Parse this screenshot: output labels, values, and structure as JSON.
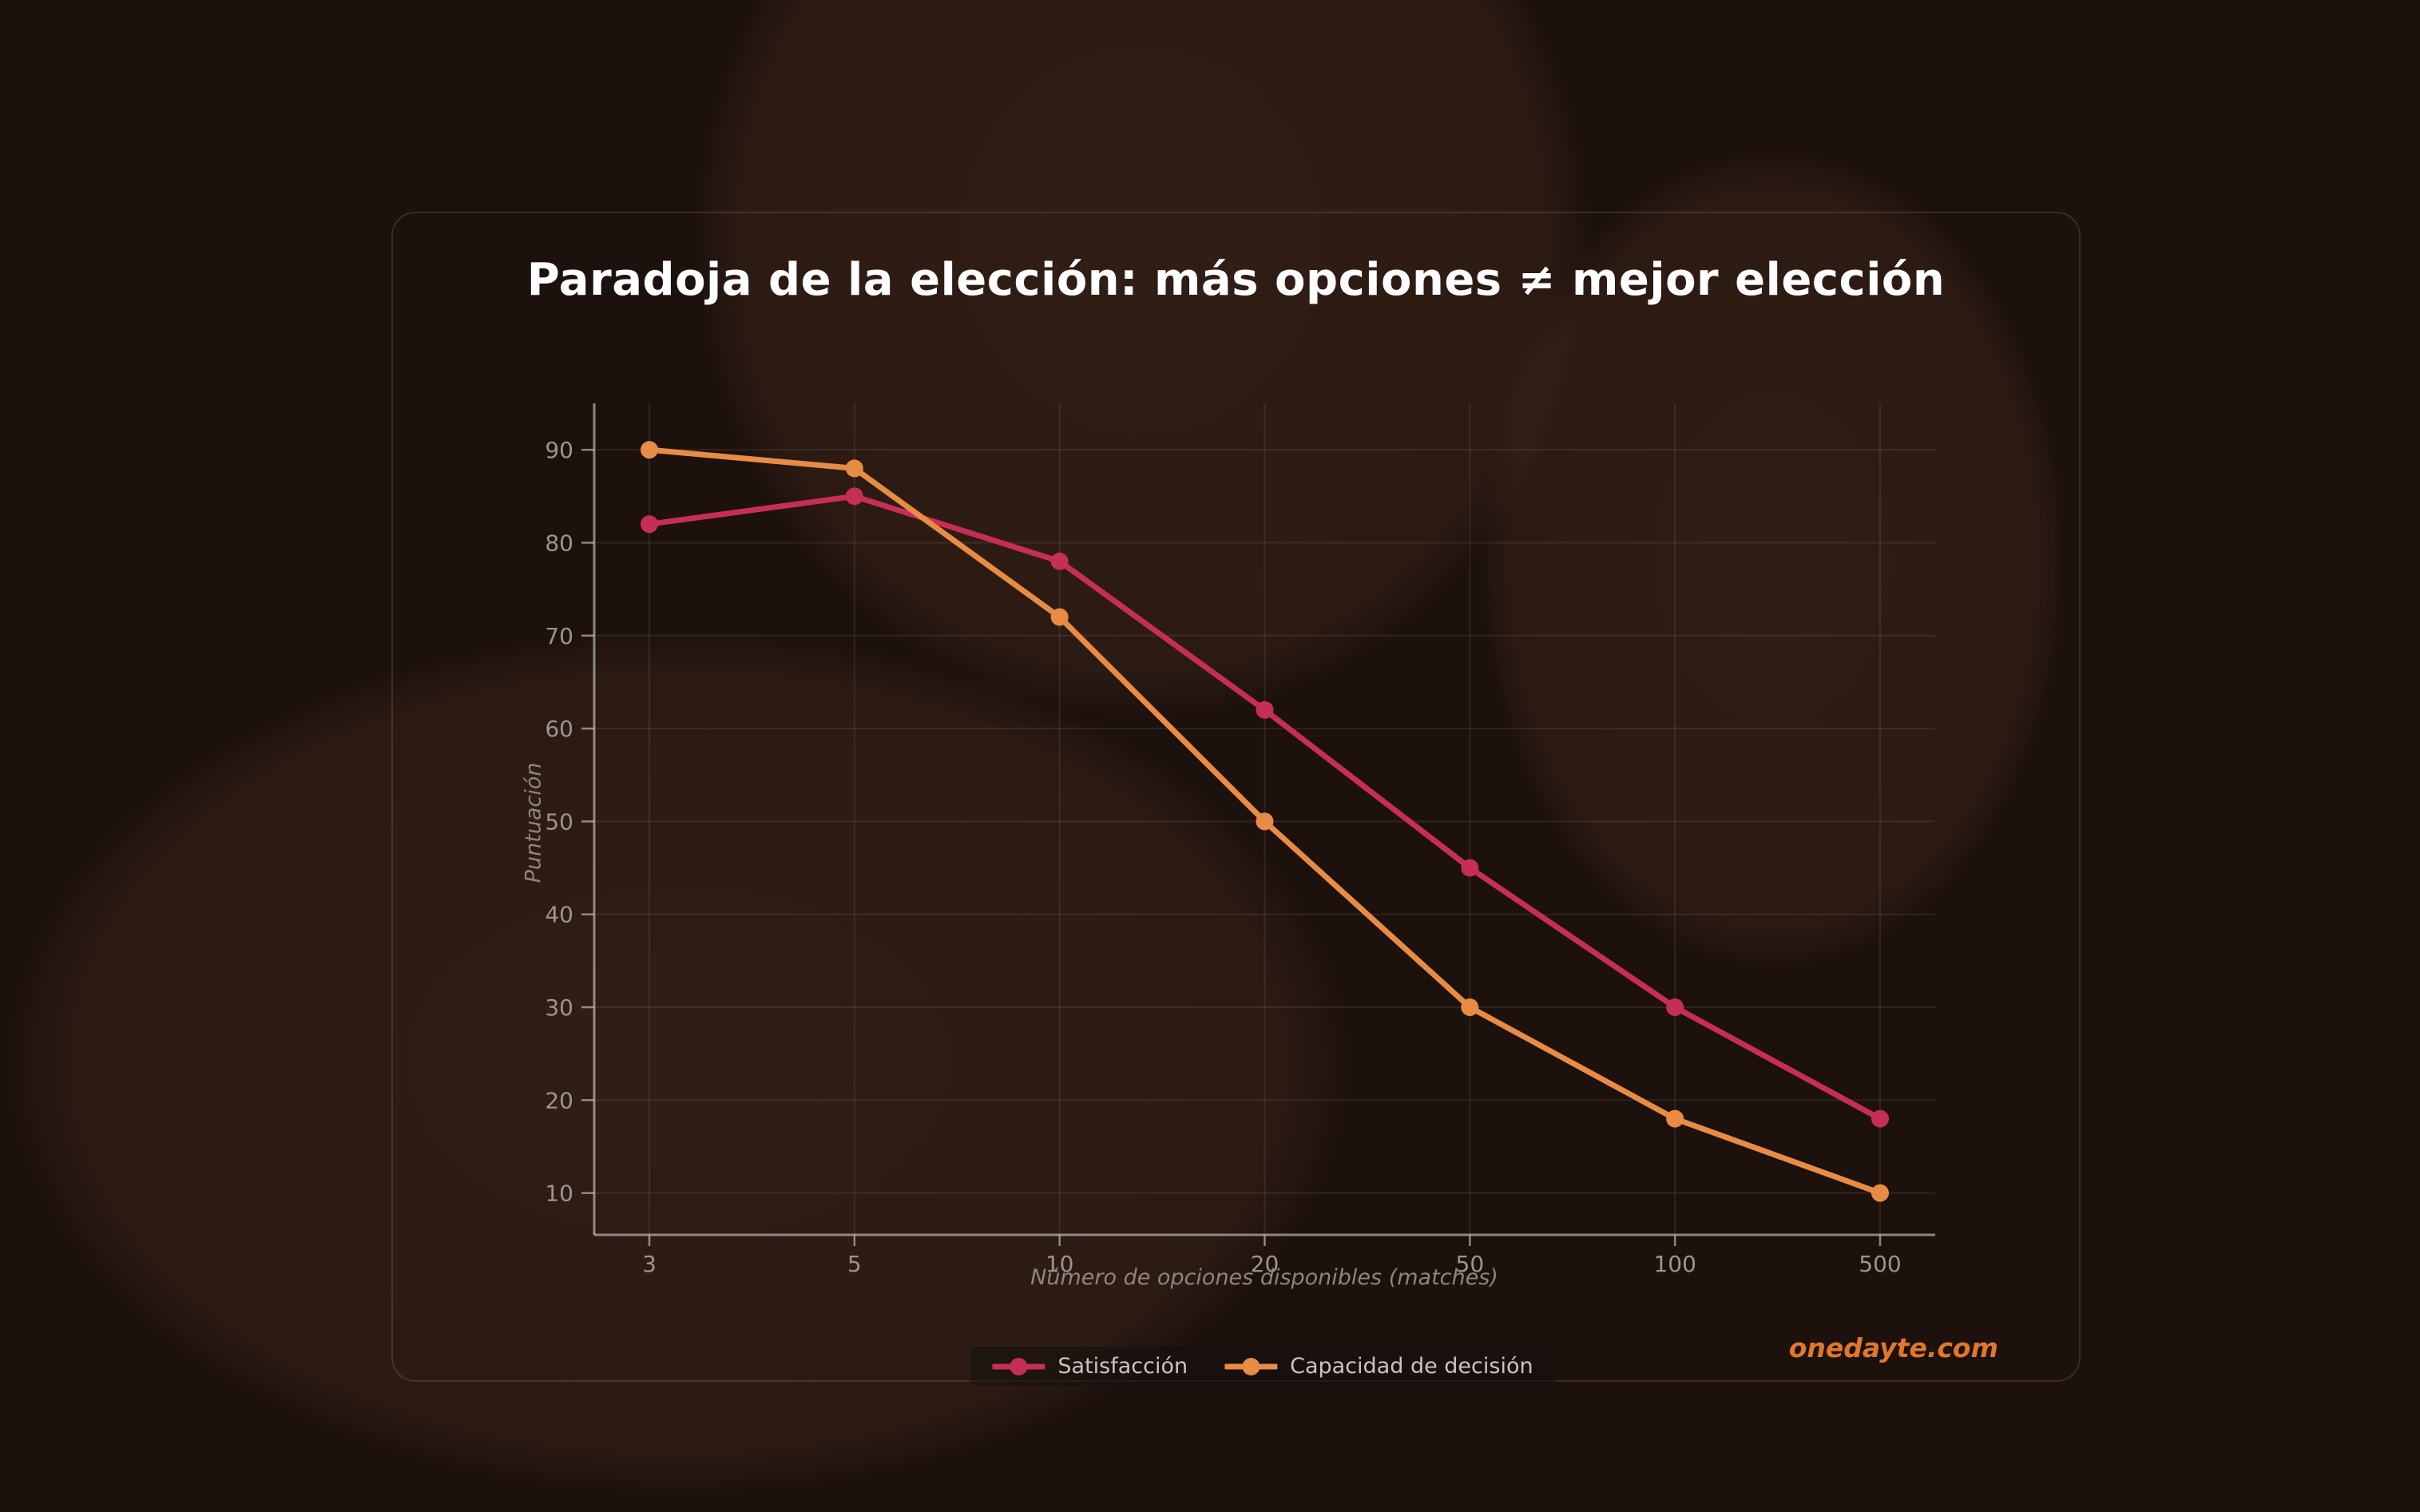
{
  "watermark": "onedayte.com",
  "chart_data": {
    "type": "line",
    "title": "Paradoja de la elección: más opciones ≠ mejor elección",
    "xlabel": "Número de opciones disponibles (matches)",
    "ylabel": "Puntuación",
    "categories": [
      "3",
      "5",
      "10",
      "20",
      "50",
      "100",
      "500"
    ],
    "y_ticks": [
      10,
      20,
      30,
      40,
      50,
      60,
      70,
      80,
      90
    ],
    "ylim": [
      5.5,
      95
    ],
    "grid": true,
    "legend_position": "bottom-center",
    "colors": {
      "grid": "rgba(255,255,255,0.08)",
      "spine": "rgba(200,196,192,0.65)",
      "tick_label": "#9c948e"
    },
    "series": [
      {
        "name": "Satisfacción",
        "color": "#c72e55",
        "values": [
          82,
          85,
          78,
          62,
          45,
          30,
          18
        ]
      },
      {
        "name": "Capacidad de decisión",
        "color": "#e88c45",
        "values": [
          90,
          88,
          72,
          50,
          30,
          18,
          10
        ]
      }
    ]
  }
}
